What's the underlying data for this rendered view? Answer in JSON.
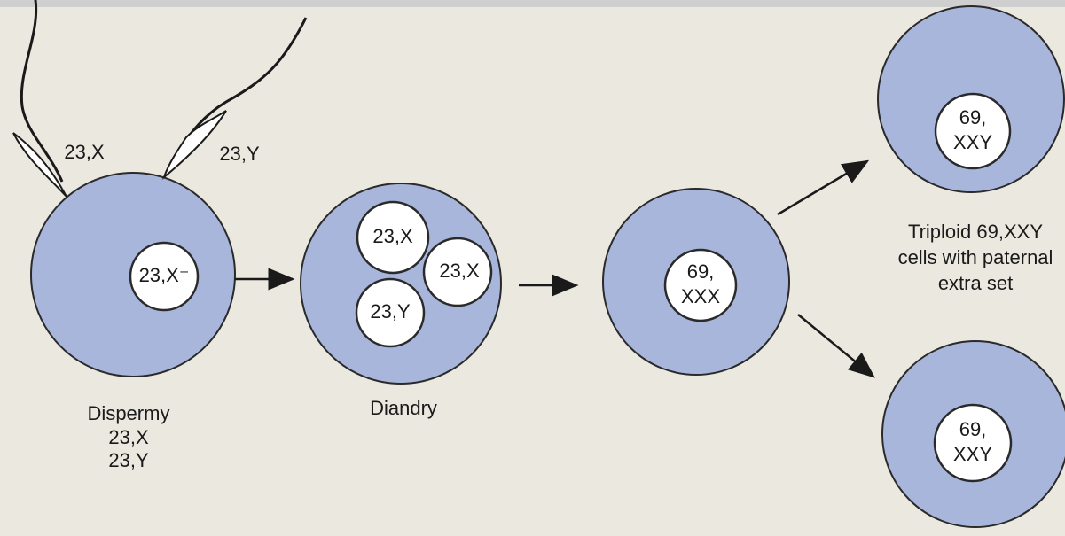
{
  "dispermy": {
    "sperm_labels": [
      "23,X",
      "23,Y"
    ],
    "egg_label": "23,X⁻",
    "caption": "Dispermy",
    "caption_lines": [
      "23,X",
      "23,Y"
    ]
  },
  "diandry": {
    "pronuclei": [
      "23,X",
      "23,X",
      "23,Y"
    ],
    "caption": "Diandry"
  },
  "zygote": {
    "nucleus": [
      "69,",
      "XXX"
    ]
  },
  "outcomes": [
    {
      "nucleus": [
        "69,",
        "XXY"
      ]
    },
    {
      "nucleus": [
        "69,",
        "XXY"
      ]
    }
  ],
  "outcome_caption": [
    "Triploid 69,XXY",
    "cells with paternal",
    "extra set"
  ]
}
